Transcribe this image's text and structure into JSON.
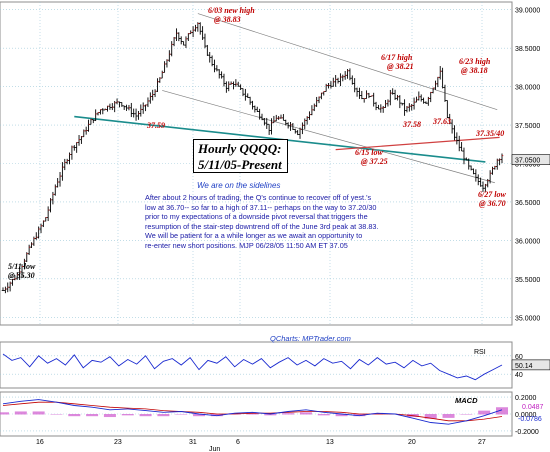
{
  "chart_data": {
    "type": "candlestick",
    "title": "Hourly QQQQ:",
    "subtitle": "5/11/05-Present",
    "status": "We are on the sidelines",
    "commentary_lines": [
      "After about 2 hours of trading, the Q's continue to recover off of yest.'s",
      "low at 36.70-- so far to a high of 37.11-- perhaps on the way to 37.20/30",
      "prior to my expectations of a downside pivot reversal that triggers the",
      "resumption of the stair-step downtrend off of the June 3rd peak at 38.83.",
      "We will be patient for a a while longer as we await an opportunity to",
      "re-enter new short positions. MJP 06/28/05 11:50 AM ET 37.05"
    ],
    "credit": "QCharts: MPTrader.com",
    "price_axis": {
      "ticks": [
        "39.0000",
        "38.5000",
        "38.0000",
        "37.5000",
        "37.0000",
        "36.5000",
        "36.0000",
        "35.5000",
        "35.0000"
      ],
      "min": 34.9,
      "max": 39.1,
      "last_price": "37.0500"
    },
    "x_axis": {
      "labels": [
        "16",
        "23",
        "31",
        "6",
        "13",
        "20",
        "27"
      ],
      "month_label": "Jun"
    },
    "price_path": [
      [
        0,
        35.35
      ],
      [
        6,
        35.55
      ],
      [
        12,
        35.95
      ],
      [
        18,
        36.3
      ],
      [
        22,
        36.7
      ],
      [
        26,
        37.0
      ],
      [
        29,
        37.2
      ],
      [
        33,
        37.35
      ],
      [
        37,
        37.55
      ],
      [
        41,
        37.7
      ],
      [
        45,
        37.75
      ],
      [
        49,
        37.8
      ],
      [
        53,
        37.7
      ],
      [
        56,
        37.62
      ],
      [
        59,
        37.72
      ],
      [
        63,
        37.9
      ],
      [
        66,
        38.1
      ],
      [
        69,
        38.35
      ],
      [
        73,
        38.7
      ],
      [
        76,
        38.55
      ],
      [
        79,
        38.72
      ],
      [
        82,
        38.83
      ],
      [
        85,
        38.5
      ],
      [
        88,
        38.3
      ],
      [
        91,
        38.15
      ],
      [
        94,
        38.0
      ],
      [
        97,
        38.05
      ],
      [
        100,
        37.95
      ],
      [
        103,
        37.85
      ],
      [
        106,
        37.7
      ],
      [
        109,
        37.6
      ],
      [
        112,
        37.45
      ],
      [
        115,
        37.6
      ],
      [
        118,
        37.55
      ],
      [
        121,
        37.5
      ],
      [
        124,
        37.4
      ],
      [
        127,
        37.55
      ],
      [
        130,
        37.7
      ],
      [
        133,
        37.85
      ],
      [
        136,
        38.0
      ],
      [
        139,
        38.05
      ],
      [
        142,
        38.1
      ],
      [
        145,
        38.2
      ],
      [
        148,
        38.0
      ],
      [
        151,
        37.85
      ],
      [
        154,
        37.9
      ],
      [
        157,
        37.75
      ],
      [
        160,
        37.7
      ],
      [
        163,
        37.9
      ],
      [
        166,
        37.85
      ],
      [
        169,
        37.7
      ],
      [
        172,
        37.75
      ],
      [
        175,
        37.85
      ],
      [
        178,
        37.8
      ],
      [
        181,
        38.0
      ],
      [
        184,
        38.18
      ],
      [
        187,
        37.6
      ],
      [
        190,
        37.35
      ],
      [
        193,
        37.15
      ],
      [
        196,
        36.95
      ],
      [
        199,
        36.8
      ],
      [
        202,
        36.7
      ],
      [
        205,
        36.85
      ],
      [
        208,
        37.05
      ],
      [
        210,
        37.11
      ]
    ],
    "annotations": [
      {
        "text": "6/03 new high",
        "text2": "@ 38.83",
        "color": "red"
      },
      {
        "text": "6/17 high",
        "text2": "@ 38.21",
        "color": "red"
      },
      {
        "text": "6/23 high",
        "text2": "@ 38.18",
        "color": "red"
      },
      {
        "text": "37.59",
        "color": "red"
      },
      {
        "text": "37.58",
        "color": "red"
      },
      {
        "text": "37.63",
        "color": "red"
      },
      {
        "text": "37.35/40",
        "color": "red"
      },
      {
        "text": "6/15 low",
        "text2": "@ 37.25",
        "color": "red"
      },
      {
        "text": "6/27 low",
        "text2": "@ 36.70",
        "color": "red"
      },
      {
        "text": "5/11 low",
        "text2": "@ 35.30",
        "color": "black"
      }
    ],
    "rsi": {
      "label": "RSI",
      "ticks": [
        "60",
        "40"
      ],
      "value": "50.14",
      "series": [
        62,
        55,
        58,
        48,
        60,
        52,
        57,
        50,
        61,
        47,
        55,
        53,
        59,
        49,
        56,
        51,
        60,
        46,
        54,
        57,
        50,
        58,
        45,
        55,
        52,
        59,
        48,
        56,
        51,
        57,
        47,
        53,
        58,
        50,
        55,
        49,
        57,
        52,
        54,
        46,
        56,
        50,
        58,
        51,
        53,
        47,
        55,
        49,
        52,
        44,
        40,
        36,
        38,
        34,
        40,
        45,
        50
      ]
    },
    "macd": {
      "label": "MACD",
      "ticks": [
        "0.2000",
        "0.0000",
        "-0.2000"
      ],
      "value1": "0.0487",
      "value2": "-0.0786",
      "macd_line": [
        0.12,
        0.15,
        0.17,
        0.14,
        0.1,
        0.08,
        0.05,
        0.06,
        0.04,
        0.02,
        0.03,
        0.0,
        -0.02,
        0.01,
        0.02,
        0.0,
        0.03,
        0.05,
        0.02,
        0.0,
        -0.02,
        0.01,
        0.0,
        -0.05,
        -0.1,
        -0.12,
        -0.08,
        -0.02,
        0.05
      ],
      "signal_line": [
        0.1,
        0.12,
        0.14,
        0.14,
        0.12,
        0.1,
        0.08,
        0.07,
        0.06,
        0.04,
        0.03,
        0.02,
        0.0,
        0.0,
        0.01,
        0.01,
        0.02,
        0.03,
        0.03,
        0.02,
        0.0,
        0.0,
        0.0,
        -0.02,
        -0.05,
        -0.08,
        -0.08,
        -0.06,
        -0.03
      ]
    }
  },
  "colors": {
    "grid": "#9ec9d9",
    "panel_border": "#8c8c8c",
    "candle": "#000000",
    "candle_up_tick": "#c00000",
    "support_line": "#1a8c8c",
    "channel_line": "#808080",
    "resistance_line": "#d04040",
    "indicator_line": "#1a2ad0",
    "macd_hist": "#d060d0",
    "annotation": "#c00000",
    "last_price_box": "#e6e6e6"
  }
}
